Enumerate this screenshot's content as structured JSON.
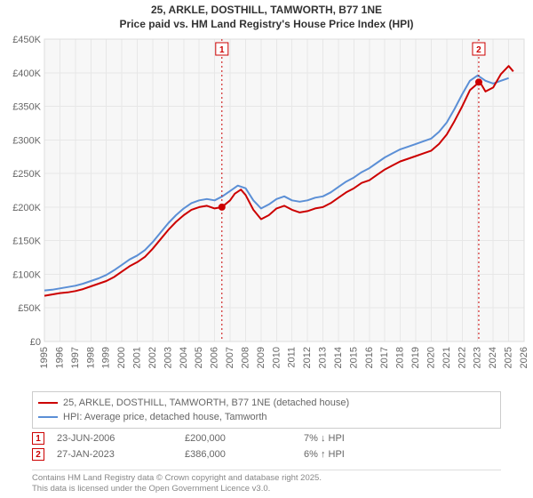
{
  "title_line1": "25, ARKLE, DOSTHILL, TAMWORTH, B77 1NE",
  "title_line2": "Price paid vs. HM Land Registry's House Price Index (HPI)",
  "chart": {
    "type": "line",
    "background_color": "#f7f7f7",
    "plot_border_color": "#dddddd",
    "grid_color": "#e7e7e7",
    "axis_text_color": "#666666",
    "axis_fontsize": 11,
    "x_years": [
      1995,
      1996,
      1997,
      1998,
      1999,
      2000,
      2001,
      2002,
      2003,
      2004,
      2005,
      2006,
      2007,
      2008,
      2009,
      2010,
      2011,
      2012,
      2013,
      2014,
      2015,
      2016,
      2017,
      2018,
      2019,
      2020,
      2021,
      2022,
      2023,
      2024,
      2025,
      2026
    ],
    "y_ticks": [
      0,
      50000,
      100000,
      150000,
      200000,
      250000,
      300000,
      350000,
      400000,
      450000
    ],
    "y_tick_labels": [
      "£0",
      "£50K",
      "£100K",
      "£150K",
      "£200K",
      "£250K",
      "£300K",
      "£350K",
      "£400K",
      "£450K"
    ],
    "x_domain": [
      1995,
      2026
    ],
    "y_domain": [
      0,
      450000
    ],
    "series": [
      {
        "name": "price_paid",
        "label": "25, ARKLE, DOSTHILL, TAMWORTH, B77 1NE (detached house)",
        "color": "#cc0000",
        "line_width": 2,
        "data": [
          [
            1995,
            68000
          ],
          [
            1995.5,
            70000
          ],
          [
            1996,
            72000
          ],
          [
            1996.5,
            73000
          ],
          [
            1997,
            75000
          ],
          [
            1997.5,
            78000
          ],
          [
            1998,
            82000
          ],
          [
            1998.5,
            86000
          ],
          [
            1999,
            90000
          ],
          [
            1999.5,
            96000
          ],
          [
            2000,
            104000
          ],
          [
            2000.5,
            112000
          ],
          [
            2001,
            118000
          ],
          [
            2001.5,
            126000
          ],
          [
            2002,
            138000
          ],
          [
            2002.5,
            152000
          ],
          [
            2003,
            166000
          ],
          [
            2003.5,
            178000
          ],
          [
            2004,
            188000
          ],
          [
            2004.5,
            196000
          ],
          [
            2005,
            200000
          ],
          [
            2005.5,
            202000
          ],
          [
            2006,
            198000
          ],
          [
            2006.47,
            200000
          ],
          [
            2007,
            210000
          ],
          [
            2007.3,
            220000
          ],
          [
            2007.7,
            226000
          ],
          [
            2008,
            218000
          ],
          [
            2008.5,
            196000
          ],
          [
            2009,
            182000
          ],
          [
            2009.5,
            188000
          ],
          [
            2010,
            198000
          ],
          [
            2010.5,
            202000
          ],
          [
            2011,
            196000
          ],
          [
            2011.5,
            192000
          ],
          [
            2012,
            194000
          ],
          [
            2012.5,
            198000
          ],
          [
            2013,
            200000
          ],
          [
            2013.5,
            206000
          ],
          [
            2014,
            214000
          ],
          [
            2014.5,
            222000
          ],
          [
            2015,
            228000
          ],
          [
            2015.5,
            236000
          ],
          [
            2016,
            240000
          ],
          [
            2016.5,
            248000
          ],
          [
            2017,
            256000
          ],
          [
            2017.5,
            262000
          ],
          [
            2018,
            268000
          ],
          [
            2018.5,
            272000
          ],
          [
            2019,
            276000
          ],
          [
            2019.5,
            280000
          ],
          [
            2020,
            284000
          ],
          [
            2020.5,
            294000
          ],
          [
            2021,
            308000
          ],
          [
            2021.5,
            328000
          ],
          [
            2022,
            350000
          ],
          [
            2022.5,
            374000
          ],
          [
            2023,
            384000
          ],
          [
            2023.07,
            386000
          ],
          [
            2023.2,
            384000
          ],
          [
            2023.5,
            372000
          ],
          [
            2024,
            378000
          ],
          [
            2024.5,
            398000
          ],
          [
            2025,
            410000
          ],
          [
            2025.3,
            402000
          ]
        ]
      },
      {
        "name": "hpi",
        "label": "HPI: Average price, detached house, Tamworth",
        "color": "#5b8fd6",
        "line_width": 2,
        "data": [
          [
            1995,
            76000
          ],
          [
            1995.5,
            77000
          ],
          [
            1996,
            79000
          ],
          [
            1996.5,
            81000
          ],
          [
            1997,
            83000
          ],
          [
            1997.5,
            86000
          ],
          [
            1998,
            90000
          ],
          [
            1998.5,
            94000
          ],
          [
            1999,
            99000
          ],
          [
            1999.5,
            106000
          ],
          [
            2000,
            114000
          ],
          [
            2000.5,
            122000
          ],
          [
            2001,
            128000
          ],
          [
            2001.5,
            136000
          ],
          [
            2002,
            148000
          ],
          [
            2002.5,
            162000
          ],
          [
            2003,
            176000
          ],
          [
            2003.5,
            188000
          ],
          [
            2004,
            198000
          ],
          [
            2004.5,
            206000
          ],
          [
            2005,
            210000
          ],
          [
            2005.5,
            212000
          ],
          [
            2006,
            210000
          ],
          [
            2006.5,
            216000
          ],
          [
            2007,
            224000
          ],
          [
            2007.5,
            232000
          ],
          [
            2008,
            228000
          ],
          [
            2008.5,
            210000
          ],
          [
            2009,
            198000
          ],
          [
            2009.5,
            204000
          ],
          [
            2010,
            212000
          ],
          [
            2010.5,
            216000
          ],
          [
            2011,
            210000
          ],
          [
            2011.5,
            208000
          ],
          [
            2012,
            210000
          ],
          [
            2012.5,
            214000
          ],
          [
            2013,
            216000
          ],
          [
            2013.5,
            222000
          ],
          [
            2014,
            230000
          ],
          [
            2014.5,
            238000
          ],
          [
            2015,
            244000
          ],
          [
            2015.5,
            252000
          ],
          [
            2016,
            258000
          ],
          [
            2016.5,
            266000
          ],
          [
            2017,
            274000
          ],
          [
            2017.5,
            280000
          ],
          [
            2018,
            286000
          ],
          [
            2018.5,
            290000
          ],
          [
            2019,
            294000
          ],
          [
            2019.5,
            298000
          ],
          [
            2020,
            302000
          ],
          [
            2020.5,
            312000
          ],
          [
            2021,
            326000
          ],
          [
            2021.5,
            346000
          ],
          [
            2022,
            368000
          ],
          [
            2022.5,
            388000
          ],
          [
            2023,
            396000
          ],
          [
            2023.5,
            388000
          ],
          [
            2024,
            384000
          ],
          [
            2024.5,
            388000
          ],
          [
            2025,
            392000
          ]
        ]
      }
    ],
    "event_markers": [
      {
        "n": "1",
        "x": 2006.47,
        "y": 200000,
        "color": "#cc0000"
      },
      {
        "n": "2",
        "x": 2023.07,
        "y": 386000,
        "color": "#cc0000"
      }
    ]
  },
  "legend": [
    {
      "color": "#cc0000",
      "label": "25, ARKLE, DOSTHILL, TAMWORTH, B77 1NE (detached house)"
    },
    {
      "color": "#5b8fd6",
      "label": "HPI: Average price, detached house, Tamworth"
    }
  ],
  "events": [
    {
      "n": "1",
      "color": "#cc0000",
      "date": "23-JUN-2006",
      "price": "£200,000",
      "hpi": "7% ↓ HPI"
    },
    {
      "n": "2",
      "color": "#cc0000",
      "date": "27-JAN-2023",
      "price": "£386,000",
      "hpi": "6% ↑ HPI"
    }
  ],
  "credits_line1": "Contains HM Land Registry data © Crown copyright and database right 2025.",
  "credits_line2": "This data is licensed under the Open Government Licence v3.0."
}
